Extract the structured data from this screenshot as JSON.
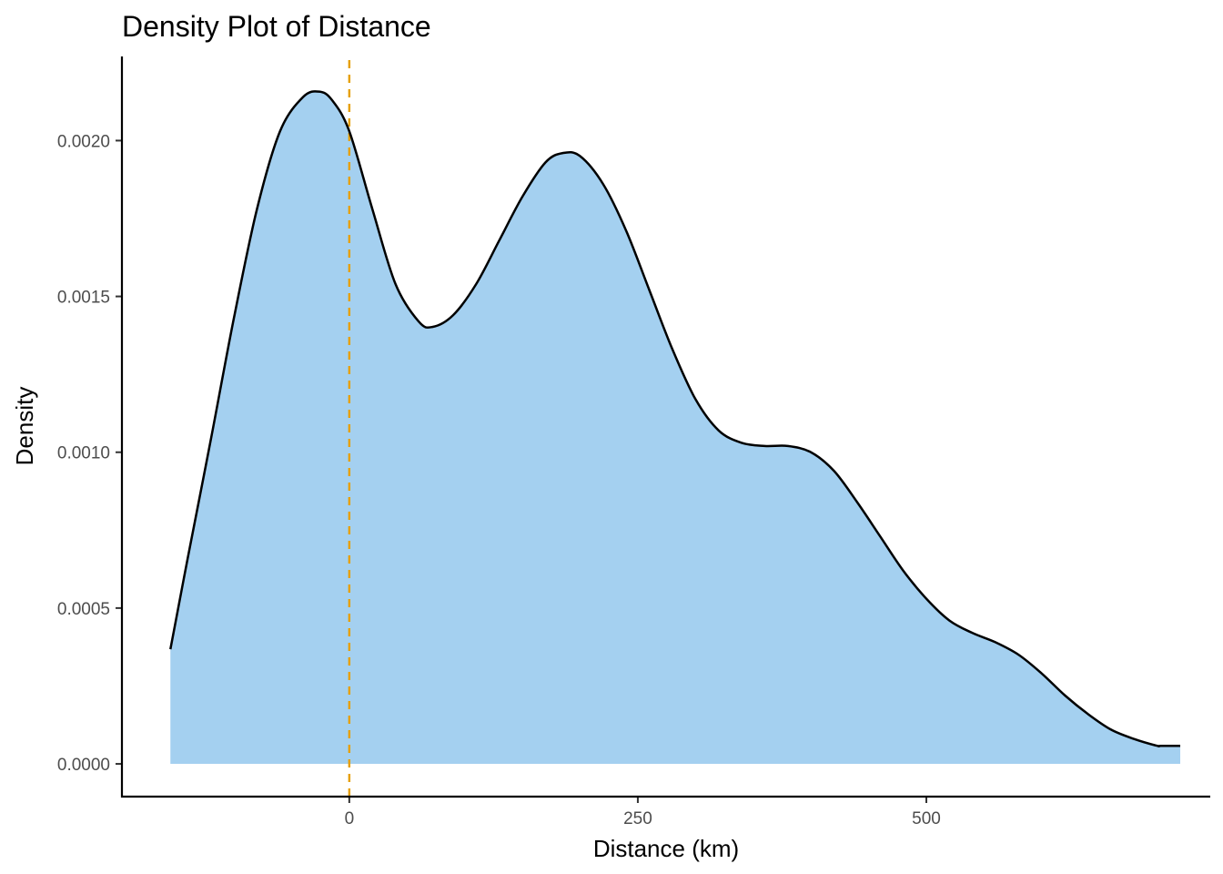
{
  "chart_data": {
    "type": "area",
    "title": "Density Plot of Distance",
    "xlabel": "Distance (km)",
    "ylabel": "Density",
    "xlim": [
      -197,
      746
    ],
    "ylim": [
      -0.000105,
      0.00227
    ],
    "x_ticks": [
      0,
      250,
      500
    ],
    "x_tick_labels": [
      "0",
      "250",
      "500"
    ],
    "y_ticks": [
      0.0,
      0.0005,
      0.001,
      0.0015,
      0.002
    ],
    "y_tick_labels": [
      "0.0000",
      "0.0005",
      "0.0010",
      "0.0015",
      "0.0020"
    ],
    "reference_line": {
      "x": 0,
      "style": "dashed",
      "color": "#E69F00"
    },
    "fill_color": "#A4D0F0",
    "line_color": "#000000",
    "grid": false,
    "legend": "none",
    "series": [
      {
        "x": [
          -155,
          -140,
          -120,
          -100,
          -80,
          -60,
          -40,
          -26,
          -15,
          0,
          20,
          40,
          60,
          72,
          90,
          110,
          130,
          150,
          170,
          185,
          200,
          220,
          240,
          260,
          280,
          300,
          320,
          340,
          360,
          380,
          400,
          420,
          440,
          460,
          480,
          500,
          520,
          540,
          560,
          580,
          600,
          620,
          640,
          660,
          680,
          700,
          720,
          703
        ],
        "y": [
          0.000368,
          0.00066,
          0.00104,
          0.00143,
          0.00178,
          0.00203,
          0.00214,
          0.002157,
          0.00213,
          0.00203,
          0.00178,
          0.00154,
          0.00142,
          0.001402,
          0.00144,
          0.00154,
          0.00168,
          0.00182,
          0.00193,
          0.00196,
          0.00195,
          0.00186,
          0.00171,
          0.00152,
          0.00133,
          0.00117,
          0.00107,
          0.00103,
          0.00102,
          0.00102,
          0.001,
          0.00094,
          0.00084,
          0.00073,
          0.00062,
          0.00053,
          0.00046,
          0.00042,
          0.00039,
          0.00035,
          0.00029,
          0.00022,
          0.00016,
          0.00011,
          8e-05,
          5.8e-05,
          5.8e-05,
          5.8e-05
        ]
      }
    ]
  }
}
